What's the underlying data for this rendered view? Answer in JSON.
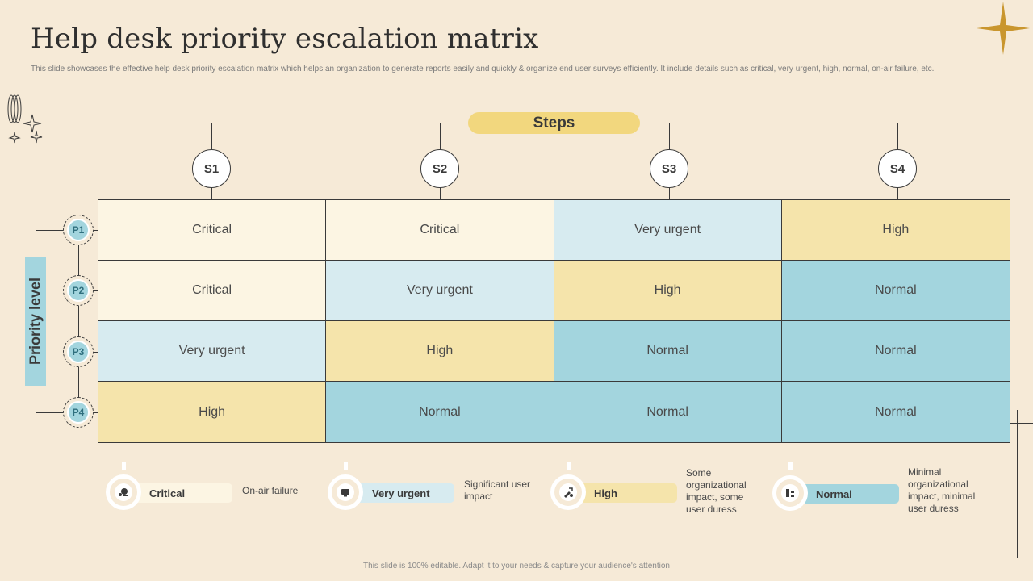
{
  "header": {
    "title": "Help desk priority escalation matrix",
    "subtitle": "This slide showcases the effective help desk priority escalation matrix which helps an organization to generate reports easily and quickly & organize end user surveys efficiently. It include details such as critical, very urgent, high, normal, on-air failure, etc."
  },
  "steps": {
    "label": "Steps",
    "items": [
      "S1",
      "S2",
      "S3",
      "S4"
    ]
  },
  "priority": {
    "label": "Priority level",
    "items": [
      "P1",
      "P2",
      "P3",
      "P4"
    ]
  },
  "matrix": {
    "rows": [
      [
        "Critical",
        "Critical",
        "Very urgent",
        "High"
      ],
      [
        "Critical",
        "Very urgent",
        "High",
        "Normal"
      ],
      [
        "Very urgent",
        "High",
        "Normal",
        "Normal"
      ],
      [
        "High",
        "Normal",
        "Normal",
        "Normal"
      ]
    ]
  },
  "legend": [
    {
      "label": "Critical",
      "desc": "On-air failure",
      "color": "#fcf5e3",
      "icon": "critical-icon"
    },
    {
      "label": "Very urgent",
      "desc": "Significant user impact",
      "color": "#d7ebf0",
      "icon": "very-urgent-icon"
    },
    {
      "label": "High",
      "desc": "Some organizational impact, some user duress",
      "color": "#f5e4ab",
      "icon": "high-icon"
    },
    {
      "label": "Normal",
      "desc": "Minimal organizational impact, minimal user duress",
      "color": "#a3d5de",
      "icon": "normal-icon"
    }
  ],
  "colors": {
    "critical": "#fcf5e3",
    "very_urgent": "#d7ebf0",
    "high": "#f5e4ab",
    "normal": "#a3d5de",
    "accent_gold": "#c9962e",
    "steps_pill": "#f2d77e"
  },
  "footer": "This slide is 100% editable.  Adapt it to your needs & capture your audience's attention"
}
